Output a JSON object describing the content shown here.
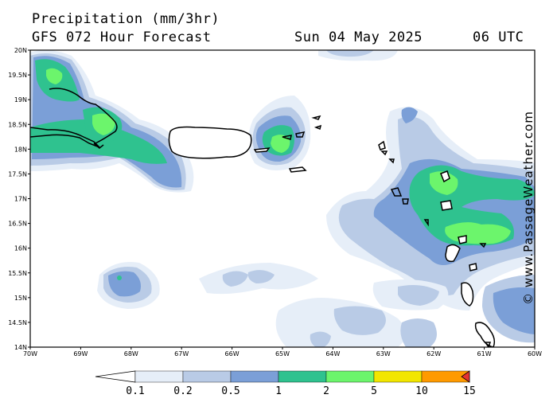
{
  "header": {
    "title": "Precipitation (mm/3hr)",
    "model": "GFS 072 Hour Forecast",
    "date": "Sun 04 May 2025",
    "time": "06 UTC"
  },
  "credit": "© www.PassageWeather.com",
  "axes": {
    "lat_labels": [
      "20N",
      "19.5N",
      "19N",
      "18.5N",
      "18N",
      "17.5N",
      "17N",
      "16.5N",
      "16N",
      "15.5N",
      "15N",
      "14.5N",
      "14N"
    ],
    "lon_labels": [
      "70W",
      "69W",
      "68W",
      "67W",
      "66W",
      "65W",
      "64W",
      "63W",
      "62W",
      "61W",
      "60W"
    ]
  },
  "colorbar": {
    "labels": [
      "0.1",
      "0.2",
      "0.5",
      "1",
      "2",
      "5",
      "10",
      "15"
    ],
    "colors": [
      "#e6eef8",
      "#b9cbe6",
      "#7b9fd7",
      "#2fc28f",
      "#6cf56c",
      "#f2e600",
      "#ff9a00",
      "#e63232"
    ]
  }
}
